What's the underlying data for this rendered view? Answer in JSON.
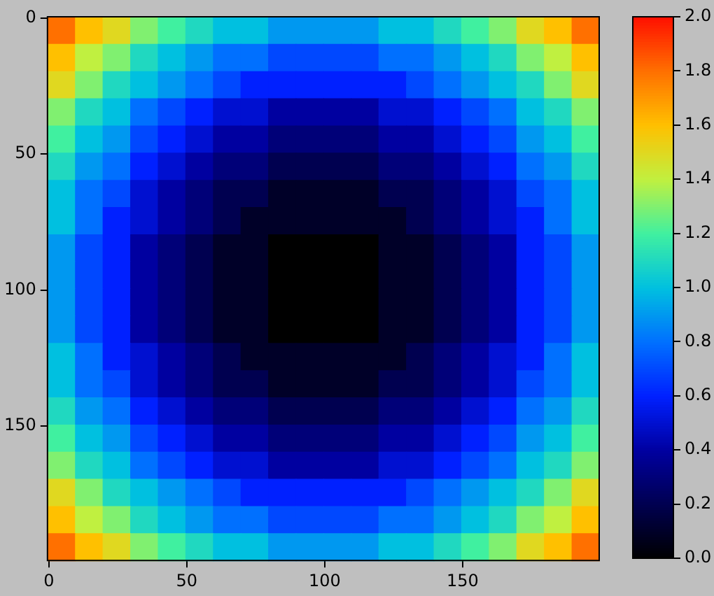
{
  "chart_data": {
    "type": "heatmap",
    "x": [
      4.5,
      14.5,
      24.5,
      34.5,
      44.5,
      54.5,
      64.5,
      74.5,
      84.5,
      94.5,
      104.5,
      114.5,
      124.5,
      134.5,
      144.5,
      154.5,
      164.5,
      174.5,
      184.5,
      194.5
    ],
    "y": [
      4.5,
      14.5,
      24.5,
      34.5,
      44.5,
      54.5,
      64.5,
      74.5,
      84.5,
      94.5,
      104.5,
      114.5,
      124.5,
      134.5,
      144.5,
      154.5,
      164.5,
      174.5,
      184.5,
      194.5
    ],
    "xlim": [
      -0.5,
      199.5
    ],
    "ylim": [
      199.5,
      -0.5
    ],
    "xticks": [
      0,
      50,
      100,
      150
    ],
    "yticks": [
      0,
      50,
      100,
      150
    ],
    "clim": [
      0,
      2
    ],
    "cticks": [
      {
        "value": 0,
        "label": "0.0"
      },
      {
        "value": 0.2,
        "label": "0.2"
      },
      {
        "value": 0.4,
        "label": "0.4"
      },
      {
        "value": 0.6,
        "label": "0.6"
      },
      {
        "value": 0.8,
        "label": "0.8"
      },
      {
        "value": 1,
        "label": "1.0"
      },
      {
        "value": 1.2,
        "label": "1.2"
      },
      {
        "value": 1.4,
        "label": "1.4"
      },
      {
        "value": 1.6,
        "label": "1.6"
      },
      {
        "value": 1.8,
        "label": "1.8"
      },
      {
        "value": 2,
        "label": "2.0"
      }
    ],
    "colors": [
      "#000000",
      "#000050",
      "#0000a0",
      "#0020ff",
      "#0070ff",
      "#00c0e0",
      "#40f0a0",
      "#c0f040",
      "#ffc000",
      "#ff7000",
      "#ff1000"
    ],
    "cells": [
      [
        1.8,
        1.6,
        1.5,
        1.3,
        1.2,
        1.1,
        1.0,
        1.0,
        0.9,
        0.9,
        0.9,
        0.9,
        1.0,
        1.0,
        1.1,
        1.2,
        1.3,
        1.5,
        1.6,
        1.8
      ],
      [
        1.6,
        1.4,
        1.3,
        1.1,
        1.0,
        0.9,
        0.8,
        0.8,
        0.7,
        0.7,
        0.7,
        0.7,
        0.8,
        0.8,
        0.9,
        1.0,
        1.1,
        1.3,
        1.4,
        1.6
      ],
      [
        1.5,
        1.3,
        1.1,
        1.0,
        0.9,
        0.8,
        0.7,
        0.6,
        0.6,
        0.6,
        0.6,
        0.6,
        0.6,
        0.7,
        0.8,
        0.9,
        1.0,
        1.1,
        1.3,
        1.5
      ],
      [
        1.3,
        1.1,
        1.0,
        0.8,
        0.7,
        0.6,
        0.5,
        0.5,
        0.4,
        0.4,
        0.4,
        0.4,
        0.5,
        0.5,
        0.6,
        0.7,
        0.8,
        1.0,
        1.1,
        1.3
      ],
      [
        1.2,
        1.0,
        0.9,
        0.7,
        0.6,
        0.5,
        0.4,
        0.4,
        0.3,
        0.3,
        0.3,
        0.3,
        0.4,
        0.4,
        0.5,
        0.6,
        0.7,
        0.9,
        1.0,
        1.2
      ],
      [
        1.1,
        0.9,
        0.8,
        0.6,
        0.5,
        0.4,
        0.3,
        0.3,
        0.2,
        0.2,
        0.2,
        0.2,
        0.3,
        0.3,
        0.4,
        0.5,
        0.6,
        0.8,
        0.9,
        1.1
      ],
      [
        1.0,
        0.8,
        0.7,
        0.5,
        0.4,
        0.3,
        0.2,
        0.2,
        0.1,
        0.1,
        0.1,
        0.1,
        0.2,
        0.2,
        0.3,
        0.4,
        0.5,
        0.7,
        0.8,
        1.0
      ],
      [
        1.0,
        0.8,
        0.6,
        0.5,
        0.4,
        0.3,
        0.2,
        0.1,
        0.1,
        0.1,
        0.1,
        0.1,
        0.1,
        0.2,
        0.3,
        0.4,
        0.5,
        0.6,
        0.8,
        1.0
      ],
      [
        0.9,
        0.7,
        0.6,
        0.4,
        0.3,
        0.2,
        0.1,
        0.1,
        0,
        0,
        0,
        0,
        0.1,
        0.1,
        0.2,
        0.3,
        0.4,
        0.6,
        0.7,
        0.9
      ],
      [
        0.9,
        0.7,
        0.6,
        0.4,
        0.3,
        0.2,
        0.1,
        0.1,
        0,
        0,
        0,
        0,
        0.1,
        0.1,
        0.2,
        0.3,
        0.4,
        0.6,
        0.7,
        0.9
      ],
      [
        0.9,
        0.7,
        0.6,
        0.4,
        0.3,
        0.2,
        0.1,
        0.1,
        0,
        0,
        0,
        0,
        0.1,
        0.1,
        0.2,
        0.3,
        0.4,
        0.6,
        0.7,
        0.9
      ],
      [
        0.9,
        0.7,
        0.6,
        0.4,
        0.3,
        0.2,
        0.1,
        0.1,
        0,
        0,
        0,
        0,
        0.1,
        0.1,
        0.2,
        0.3,
        0.4,
        0.6,
        0.7,
        0.9
      ],
      [
        1.0,
        0.8,
        0.6,
        0.5,
        0.4,
        0.3,
        0.2,
        0.1,
        0.1,
        0.1,
        0.1,
        0.1,
        0.1,
        0.2,
        0.3,
        0.4,
        0.5,
        0.6,
        0.8,
        1.0
      ],
      [
        1.0,
        0.8,
        0.7,
        0.5,
        0.4,
        0.3,
        0.2,
        0.2,
        0.1,
        0.1,
        0.1,
        0.1,
        0.2,
        0.2,
        0.3,
        0.4,
        0.5,
        0.7,
        0.8,
        1.0
      ],
      [
        1.1,
        0.9,
        0.8,
        0.6,
        0.5,
        0.4,
        0.3,
        0.3,
        0.2,
        0.2,
        0.2,
        0.2,
        0.3,
        0.3,
        0.4,
        0.5,
        0.6,
        0.8,
        0.9,
        1.1
      ],
      [
        1.2,
        1.0,
        0.9,
        0.7,
        0.6,
        0.5,
        0.4,
        0.4,
        0.3,
        0.3,
        0.3,
        0.3,
        0.4,
        0.4,
        0.5,
        0.6,
        0.7,
        0.9,
        1.0,
        1.2
      ],
      [
        1.3,
        1.1,
        1.0,
        0.8,
        0.7,
        0.6,
        0.5,
        0.5,
        0.4,
        0.4,
        0.4,
        0.4,
        0.5,
        0.5,
        0.6,
        0.7,
        0.8,
        1.0,
        1.1,
        1.3
      ],
      [
        1.5,
        1.3,
        1.1,
        1.0,
        0.9,
        0.8,
        0.7,
        0.6,
        0.6,
        0.6,
        0.6,
        0.6,
        0.6,
        0.7,
        0.8,
        0.9,
        1.0,
        1.1,
        1.3,
        1.5
      ],
      [
        1.6,
        1.4,
        1.3,
        1.1,
        1.0,
        0.9,
        0.8,
        0.8,
        0.7,
        0.7,
        0.7,
        0.7,
        0.8,
        0.8,
        0.9,
        1.0,
        1.1,
        1.3,
        1.4,
        1.6
      ],
      [
        1.8,
        1.6,
        1.5,
        1.3,
        1.2,
        1.1,
        1.0,
        1.0,
        0.9,
        0.9,
        0.9,
        0.9,
        1.0,
        1.0,
        1.1,
        1.2,
        1.3,
        1.5,
        1.6,
        1.8
      ]
    ]
  }
}
